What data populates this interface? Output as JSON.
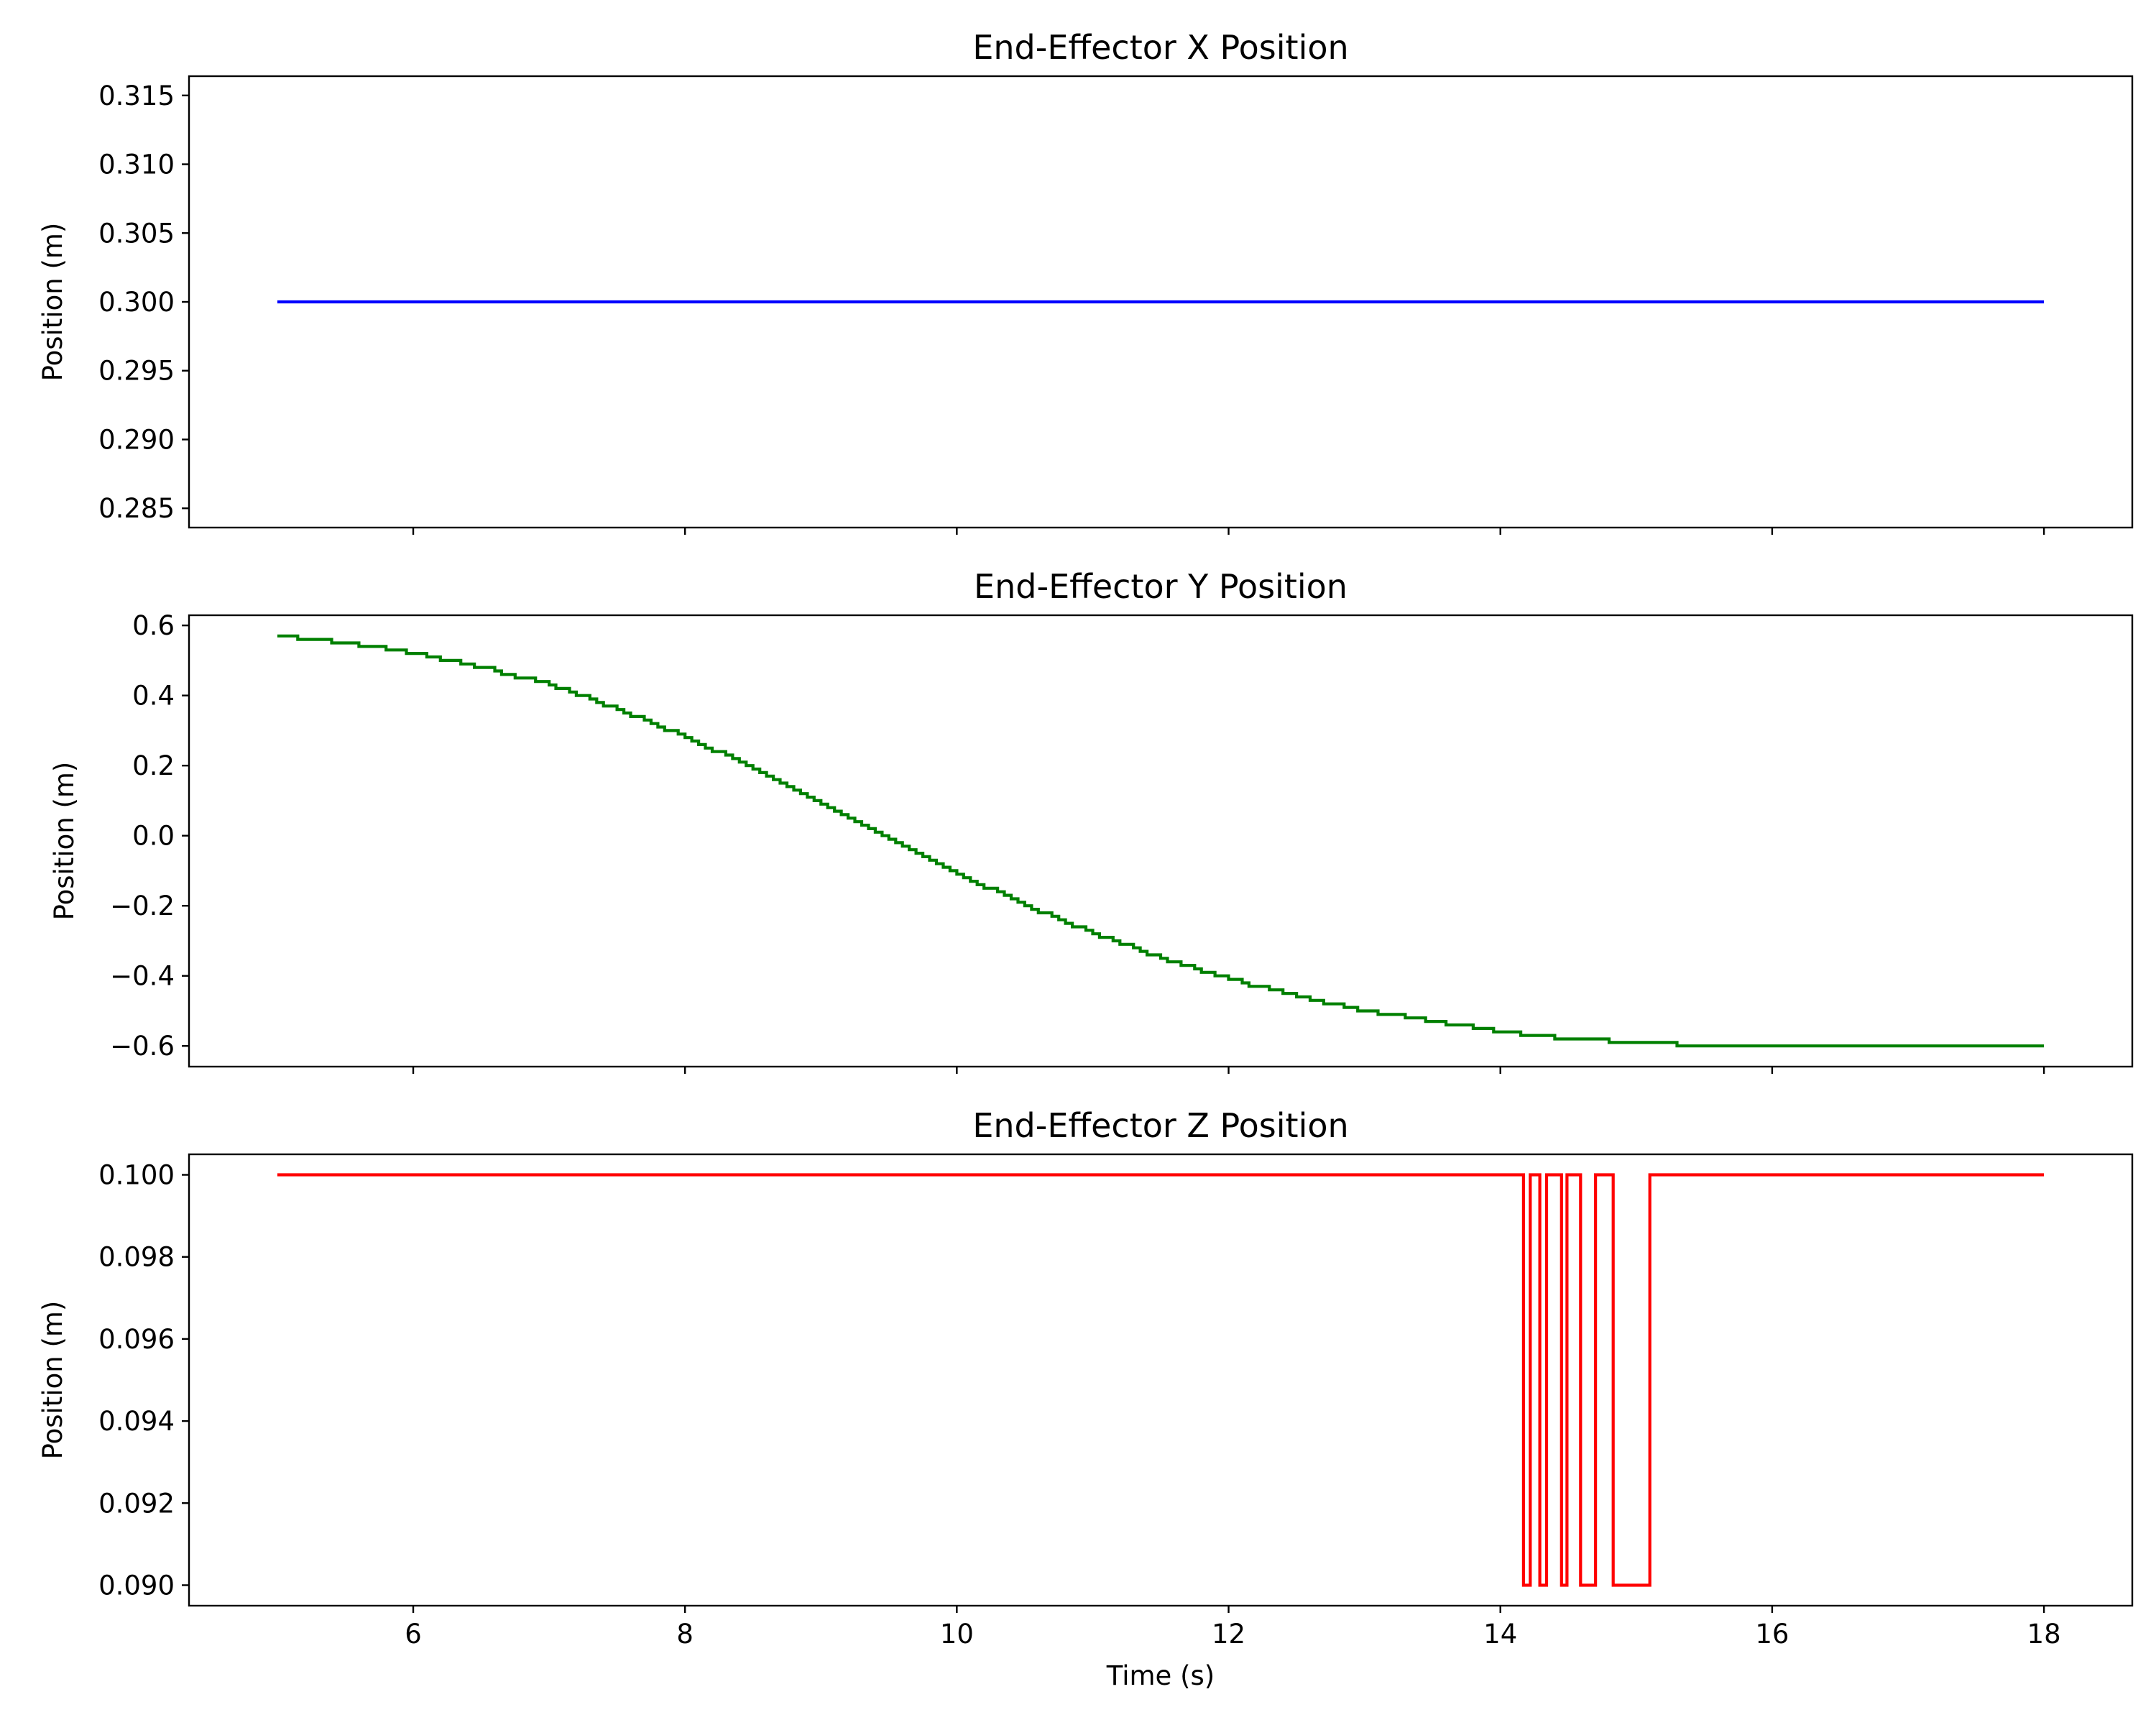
{
  "chart_data": [
    {
      "type": "line",
      "title": "End-Effector X Position",
      "ylabel": "Position (m)",
      "xlabel": "",
      "xlim": [
        4.35,
        18.65
      ],
      "ylim": [
        0.2836,
        0.3164
      ],
      "xticks": [
        6,
        8,
        10,
        12,
        14,
        16,
        18
      ],
      "show_xtick_labels": false,
      "yticks": [
        0.285,
        0.29,
        0.295,
        0.3,
        0.305,
        0.31,
        0.315
      ],
      "ytick_labels": [
        "0.285",
        "0.290",
        "0.295",
        "0.300",
        "0.305",
        "0.310",
        "0.315"
      ],
      "grid": false,
      "color": "#0000ff",
      "steps": false,
      "x": [
        5.0,
        18.0
      ],
      "y": [
        0.3,
        0.3
      ]
    },
    {
      "type": "line",
      "title": "End-Effector Y Position",
      "ylabel": "Position (m)",
      "xlabel": "",
      "xlim": [
        4.35,
        18.65
      ],
      "ylim": [
        -0.659,
        0.629
      ],
      "xticks": [
        6,
        8,
        10,
        12,
        14,
        16,
        18
      ],
      "show_xtick_labels": false,
      "yticks": [
        -0.6,
        -0.4,
        -0.2,
        0.0,
        0.2,
        0.4,
        0.6
      ],
      "ytick_labels": [
        "−0.6",
        "−0.4",
        "−0.2",
        "0.0",
        "0.2",
        "0.4",
        "0.6"
      ],
      "grid": false,
      "color": "#008000",
      "steps": true,
      "x": [
        5.0,
        5.5,
        6.0,
        6.5,
        7.0,
        7.5,
        8.0,
        8.5,
        9.0,
        9.5,
        10.0,
        10.5,
        11.0,
        11.5,
        12.0,
        12.5,
        13.0,
        13.5,
        14.0,
        14.5,
        15.0,
        15.5,
        16.0,
        17.0,
        18.0
      ],
      "y": [
        0.57,
        0.55,
        0.52,
        0.48,
        0.43,
        0.36,
        0.28,
        0.19,
        0.09,
        -0.01,
        -0.11,
        -0.2,
        -0.28,
        -0.35,
        -0.41,
        -0.46,
        -0.5,
        -0.53,
        -0.56,
        -0.58,
        -0.59,
        -0.6,
        -0.6,
        -0.6,
        -0.6
      ]
    },
    {
      "type": "line",
      "title": "End-Effector Z Position",
      "ylabel": "Position (m)",
      "xlabel": "Time (s)",
      "xlim": [
        4.35,
        18.65
      ],
      "ylim": [
        0.0895,
        0.1005
      ],
      "xticks": [
        6,
        8,
        10,
        12,
        14,
        16,
        18
      ],
      "xtick_labels": [
        "6",
        "8",
        "10",
        "12",
        "14",
        "16",
        "18"
      ],
      "show_xtick_labels": true,
      "yticks": [
        0.09,
        0.092,
        0.094,
        0.096,
        0.098,
        0.1
      ],
      "ytick_labels": [
        "0.090",
        "0.092",
        "0.094",
        "0.096",
        "0.098",
        "0.100"
      ],
      "grid": false,
      "color": "#ff0000",
      "steps": false,
      "x": [
        5.0,
        14.17,
        14.17,
        14.22,
        14.22,
        14.29,
        14.29,
        14.34,
        14.34,
        14.45,
        14.45,
        14.49,
        14.49,
        14.59,
        14.59,
        14.7,
        14.7,
        14.83,
        14.83,
        15.1,
        15.1,
        18.0
      ],
      "y": [
        0.1,
        0.1,
        0.09,
        0.09,
        0.1,
        0.1,
        0.09,
        0.09,
        0.1,
        0.1,
        0.09,
        0.09,
        0.1,
        0.1,
        0.09,
        0.09,
        0.1,
        0.1,
        0.09,
        0.09,
        0.1,
        0.1
      ]
    }
  ]
}
